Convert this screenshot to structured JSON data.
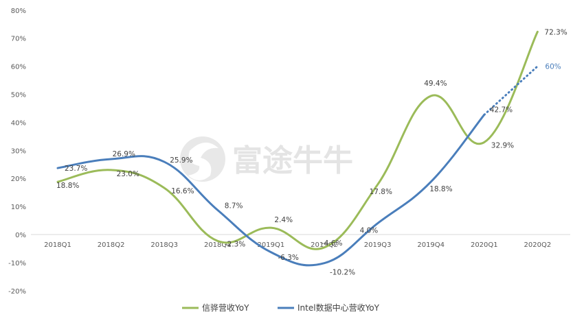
{
  "chart_data": {
    "type": "line",
    "categories": [
      "2018Q1",
      "2018Q2",
      "2018Q3",
      "2018Q4",
      "2019Q1",
      "2019Q2",
      "2019Q3",
      "2019Q4",
      "2020Q1",
      "2020Q2"
    ],
    "ylim": [
      -20,
      80
    ],
    "y_ticks": [
      "-20%",
      "-10%",
      "0%",
      "10%",
      "20%",
      "30%",
      "40%",
      "50%",
      "60%",
      "70%",
      "80%"
    ],
    "grid": false,
    "legend_position": "bottom",
    "watermark": "富途牛牛",
    "series": [
      {
        "name": "信骅营收YoY",
        "color": "#9bbb59",
        "values": [
          18.8,
          23.0,
          16.6,
          -2.3,
          2.4,
          -4.6,
          17.8,
          49.4,
          32.9,
          72.3
        ],
        "labels": [
          "18.8%",
          "23.0%",
          "16.6%",
          "-2.3%",
          "2.4%",
          "-4.6%",
          "17.8%",
          "49.4%",
          "32.9%",
          "72.3%"
        ]
      },
      {
        "name": "Intel数据中心营收YoY",
        "color": "#4a7ebb",
        "values": [
          23.7,
          26.9,
          25.9,
          8.7,
          -6.3,
          -10.2,
          4.0,
          18.8,
          42.7,
          60
        ],
        "labels": [
          "23.7%",
          "26.9%",
          "25.9%",
          "8.7%",
          "-6.3%",
          "-10.2%",
          "4.0%",
          "18.8%",
          "42.7%",
          "60%"
        ],
        "projected_from_index": 8,
        "projected_color": "#4a7ebb"
      }
    ]
  }
}
